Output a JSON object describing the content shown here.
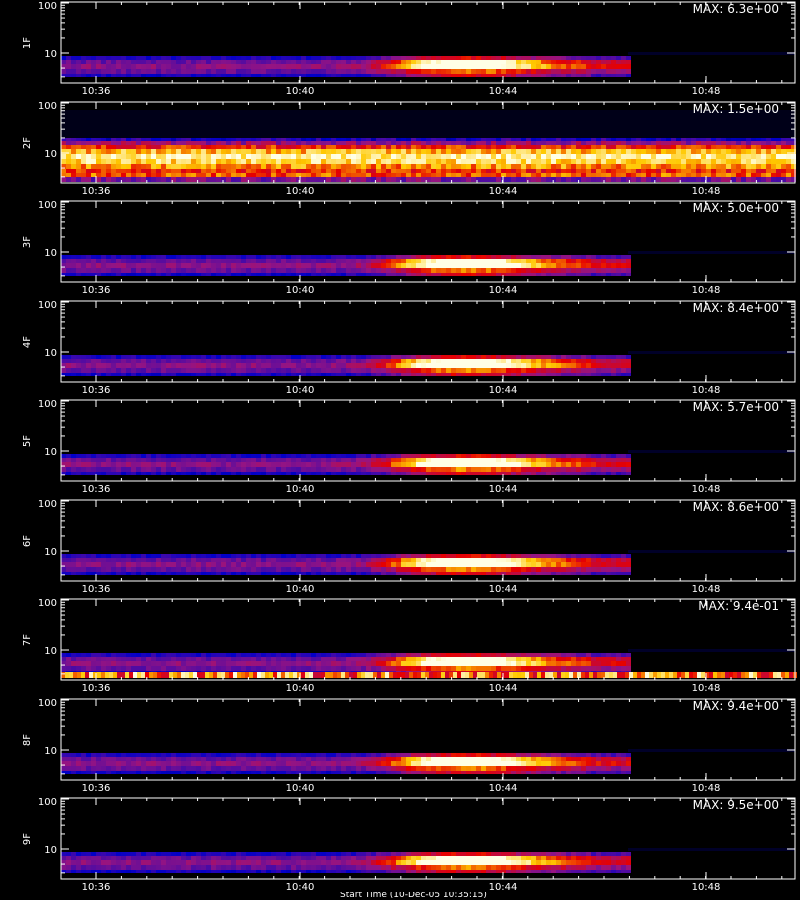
{
  "chart_data": {
    "type": "heatmap",
    "x_tick_labels": [
      "10:36",
      "10:40",
      "10:44",
      "10:48"
    ],
    "y_tick_labels": [
      "10",
      "100"
    ],
    "y_scale": "log",
    "colors": {
      "background": "#000000",
      "frame": "#ffffff",
      "text": "#ffffff"
    },
    "panels": [
      {
        "label": "1F",
        "max_text": "MAX: 6.3e+00"
      },
      {
        "label": "2F",
        "max_text": "MAX: 1.5e+00"
      },
      {
        "label": "3F",
        "max_text": "MAX: 5.0e+00"
      },
      {
        "label": "4F",
        "max_text": "MAX: 8.4e+00"
      },
      {
        "label": "5F",
        "max_text": "MAX: 5.7e+00"
      },
      {
        "label": "6F",
        "max_text": "MAX: 8.6e+00"
      },
      {
        "label": "7F",
        "max_text": "MAX: 9.4e-01"
      },
      {
        "label": "8F",
        "max_text": "MAX: 9.4e+00"
      },
      {
        "label": "9F",
        "max_text": "MAX: 9.5e+00"
      }
    ]
  },
  "footer": {
    "text": "Start Time (10-Dec-05 10:35:15)"
  }
}
